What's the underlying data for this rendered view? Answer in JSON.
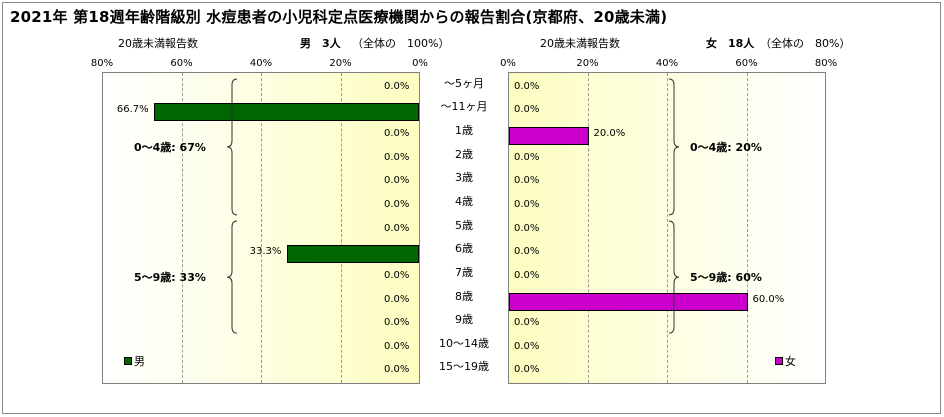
{
  "title": "2021年 第18週年齢階級別 水痘患者の小児科定点医療機関からの報告割合(京都府、20歳未満)",
  "left_header": {
    "reports_label": "20歳未満報告数",
    "sex_count": "男　3人",
    "share": "（全体の　100%）"
  },
  "right_header": {
    "reports_label": "20歳未満報告数",
    "sex_count": "女　18人",
    "share": "（全体の　80%）"
  },
  "colors": {
    "male": "#006600",
    "female": "#cc00cc"
  },
  "chart_data": [
    {
      "type": "bar",
      "orientation": "horizontal",
      "direction": "right-to-left",
      "series": [
        {
          "name": "男",
          "values": [
            0.0,
            66.7,
            0.0,
            0.0,
            0.0,
            0.0,
            0.0,
            33.3,
            0.0,
            0.0,
            0.0,
            0.0,
            0.0
          ]
        }
      ],
      "value_labels": [
        "0.0%",
        "66.7%",
        "0.0%",
        "0.0%",
        "0.0%",
        "0.0%",
        "0.0%",
        "33.3%",
        "0.0%",
        "0.0%",
        "0.0%",
        "0.0%",
        "0.0%"
      ],
      "xlim": [
        0,
        80
      ],
      "x_ticks": [
        "80%",
        "60%",
        "40%",
        "20%",
        "0%"
      ],
      "groups": [
        {
          "label": "0～4歳: 67%",
          "from": 0,
          "to": 5
        },
        {
          "label": "5～9歳: 33%",
          "from": 6,
          "to": 10
        }
      ],
      "legend": "bottom-left",
      "grid": true
    },
    {
      "type": "bar",
      "orientation": "horizontal",
      "direction": "left-to-right",
      "series": [
        {
          "name": "女",
          "values": [
            0.0,
            0.0,
            20.0,
            0.0,
            0.0,
            0.0,
            0.0,
            0.0,
            0.0,
            60.0,
            0.0,
            0.0,
            0.0
          ]
        }
      ],
      "value_labels": [
        "0.0%",
        "0.0%",
        "20.0%",
        "0.0%",
        "0.0%",
        "0.0%",
        "0.0%",
        "0.0%",
        "0.0%",
        "60.0%",
        "0.0%",
        "0.0%",
        "0.0%"
      ],
      "xlim": [
        0,
        80
      ],
      "x_ticks": [
        "0%",
        "20%",
        "40%",
        "60%",
        "80%"
      ],
      "groups": [
        {
          "label": "0～4歳: 20%",
          "from": 0,
          "to": 5
        },
        {
          "label": "5～9歳: 60%",
          "from": 6,
          "to": 10
        }
      ],
      "legend": "bottom-right",
      "grid": true
    }
  ],
  "age_categories": [
    "～5ヶ月",
    "～11ヶ月",
    "1歳",
    "2歳",
    "3歳",
    "4歳",
    "5歳",
    "6歳",
    "7歳",
    "8歳",
    "9歳",
    "10～14歳",
    "15～19歳"
  ]
}
